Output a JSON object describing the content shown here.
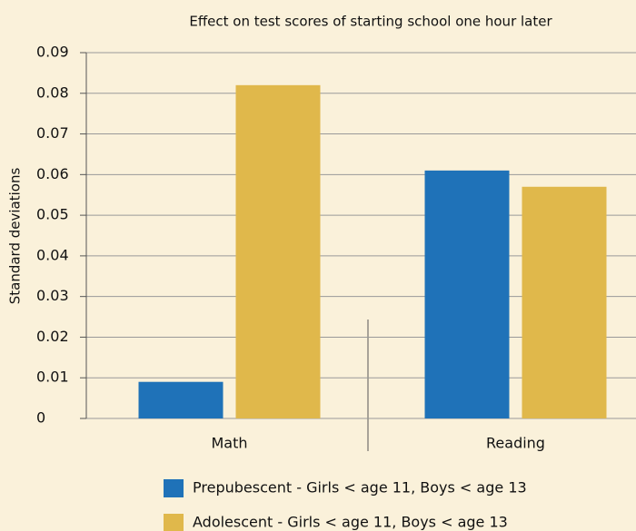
{
  "chart_data": {
    "type": "bar",
    "title": "Effect on test scores of starting school one hour later",
    "ylabel": "Standard deviations",
    "categories": [
      "Math",
      "Reading"
    ],
    "series": [
      {
        "name": "Prepubescent - Girls < age 11, Boys < age 13",
        "color": "#1f72b8",
        "values": [
          0.009,
          0.061
        ]
      },
      {
        "name": "Adolescent - Girls < age 11, Boys < age 13",
        "color": "#e0b84b",
        "values": [
          0.082,
          0.057
        ]
      }
    ],
    "ylim": [
      0,
      0.09
    ],
    "yticks": [
      0,
      0.01,
      0.02,
      0.03,
      0.04,
      0.05,
      0.06,
      0.07,
      0.08,
      0.09
    ],
    "grid": true
  }
}
